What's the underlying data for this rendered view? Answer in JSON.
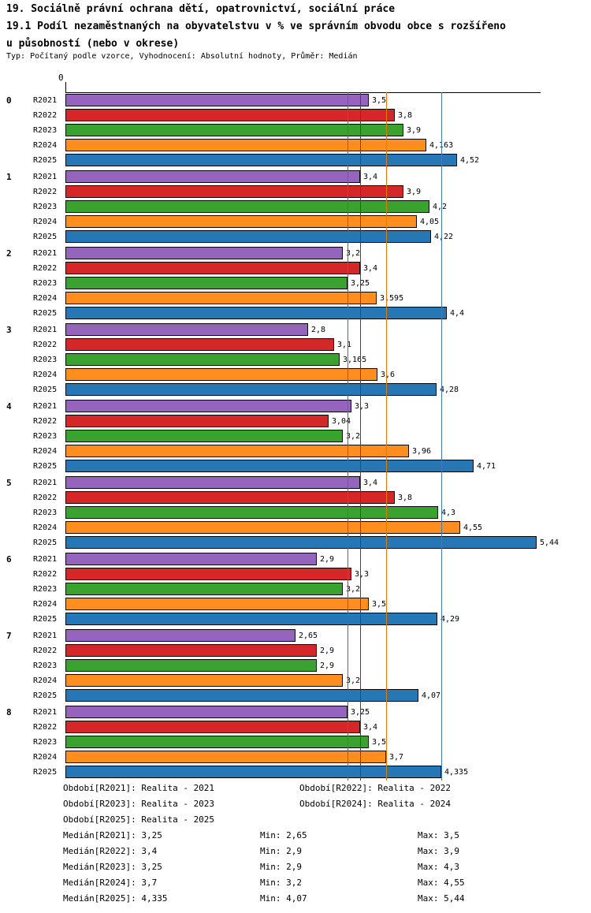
{
  "header": {
    "title_line1": "19. Sociálně právní ochrana dětí, opatrovnictví, sociální práce",
    "title_line2": "19.1 Podíl nezaměstnaných na obyvatelstvu v % ve správním obvodu obce s rozšířeno",
    "title_line3": "u působností (nebo v okrese)",
    "subtitle": "Typ: Počítaný podle vzorce, Vyhodnocení: Absolutní hodnoty, Průměr: Medián"
  },
  "chart_data": {
    "type": "bar",
    "orientation": "horizontal",
    "axis_origin_label": "0",
    "xlim": [
      0,
      5.5
    ],
    "grid": false,
    "groups": [
      "0",
      "1",
      "2",
      "3",
      "4",
      "5",
      "6",
      "7",
      "8"
    ],
    "series_labels": [
      "R2021",
      "R2022",
      "R2023",
      "R2024",
      "R2025"
    ],
    "series_colors": [
      "#9565bd",
      "#d62728",
      "#3aa22e",
      "#ff8e1f",
      "#2577b5"
    ],
    "values": [
      [
        3.5,
        3.8,
        3.9,
        4.163,
        4.52
      ],
      [
        3.4,
        3.9,
        4.2,
        4.05,
        4.22
      ],
      [
        3.2,
        3.4,
        3.25,
        3.595,
        4.4
      ],
      [
        2.8,
        3.1,
        3.165,
        3.6,
        4.28
      ],
      [
        3.3,
        3.04,
        3.2,
        3.96,
        4.71
      ],
      [
        3.4,
        3.8,
        4.3,
        4.55,
        5.44
      ],
      [
        2.9,
        3.3,
        3.2,
        3.5,
        4.29
      ],
      [
        2.65,
        2.9,
        2.9,
        3.2,
        4.07
      ],
      [
        3.25,
        3.4,
        3.5,
        3.7,
        4.335
      ]
    ],
    "value_labels": [
      [
        "3,5",
        "3,8",
        "3,9",
        "4,163",
        "4,52"
      ],
      [
        "3,4",
        "3,9",
        "4,2",
        "4,05",
        "4,22"
      ],
      [
        "3,2",
        "3,4",
        "3,25",
        "3,595",
        "4,4"
      ],
      [
        "2,8",
        "3,1",
        "3,165",
        "3,6",
        "4,28"
      ],
      [
        "3,3",
        "3,04",
        "3,2",
        "3,96",
        "4,71"
      ],
      [
        "3,4",
        "3,8",
        "4,3",
        "4,55",
        "5,44"
      ],
      [
        "2,9",
        "3,3",
        "3,2",
        "3,5",
        "4,29"
      ],
      [
        "2,65",
        "2,9",
        "2,9",
        "3,2",
        "4,07"
      ],
      [
        "3,25",
        "3,4",
        "3,5",
        "3,7",
        "4,335"
      ]
    ],
    "median_lines": [
      {
        "series": "R2021",
        "value": 3.25,
        "color": "#7d3c98"
      },
      {
        "series": "R2022",
        "value": 3.4,
        "color": "#9e2020"
      },
      {
        "series": "R2023",
        "value": 3.25,
        "color": "#169e16"
      },
      {
        "series": "R2024",
        "value": 3.7,
        "color": "#e07c00"
      },
      {
        "series": "R2025",
        "value": 4.335,
        "color": "#3f7cb6"
      }
    ]
  },
  "legend": {
    "items": [
      "Období[R2021]: Realita - 2021",
      "Období[R2022]: Realita - 2022",
      "Období[R2023]: Realita - 2023",
      "Období[R2024]: Realita - 2024",
      "Období[R2025]: Realita - 2025"
    ]
  },
  "stats": {
    "rows": [
      {
        "median": "Medián[R2021]: 3,25",
        "min": "Min: 2,65",
        "max": "Max: 3,5"
      },
      {
        "median": "Medián[R2022]: 3,4",
        "min": "Min: 2,9",
        "max": "Max: 3,9"
      },
      {
        "median": "Medián[R2023]: 3,25",
        "min": "Min: 2,9",
        "max": "Max: 4,3"
      },
      {
        "median": "Medián[R2024]: 3,7",
        "min": "Min: 3,2",
        "max": "Max: 4,55"
      },
      {
        "median": "Medián[R2025]: 4,335",
        "min": "Min: 4,07",
        "max": "Max: 5,44"
      }
    ]
  }
}
